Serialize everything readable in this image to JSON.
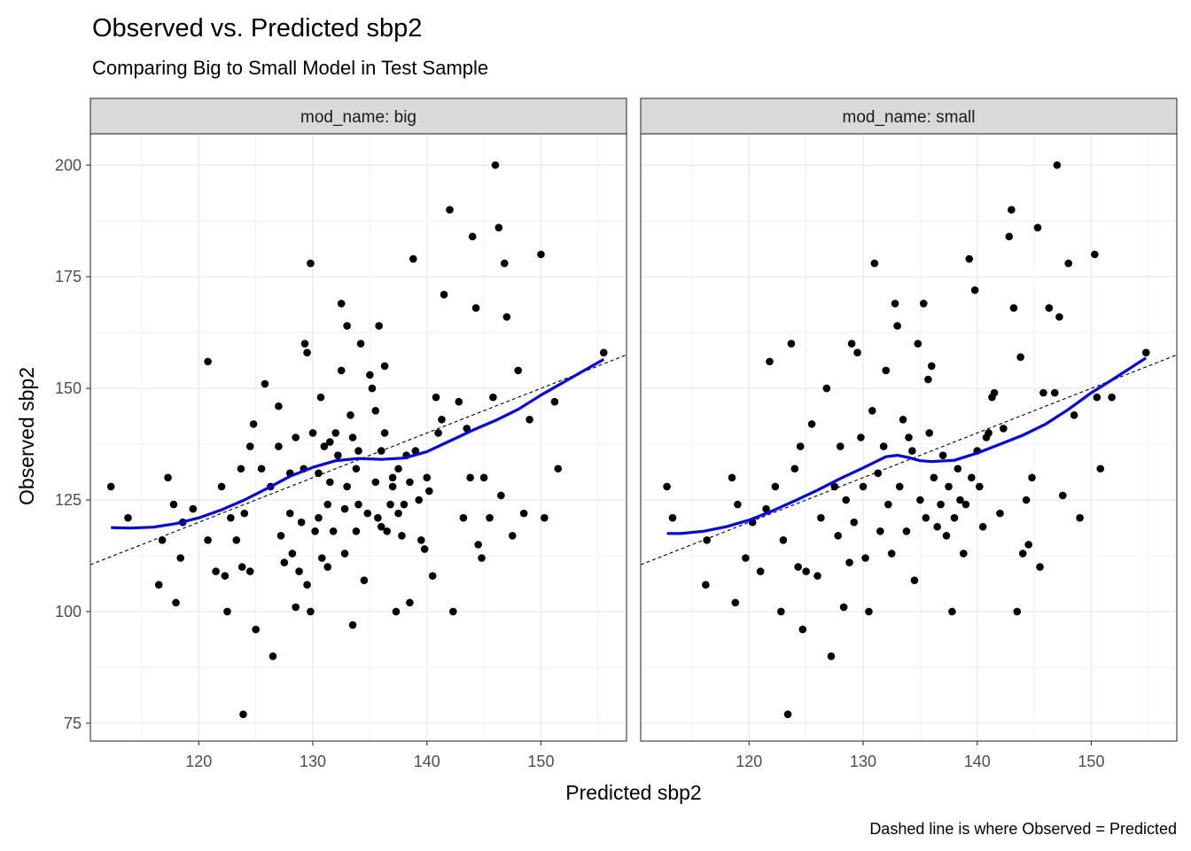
{
  "chart_data": {
    "type": "scatter",
    "title": "Observed vs. Predicted sbp2",
    "subtitle": "Comparing Big to Small Model in Test Sample",
    "xlabel": "Predicted sbp2",
    "ylabel": "Observed sbp2",
    "caption": "Dashed line is where Observed = Predicted",
    "xlim": [
      110.5,
      157.5
    ],
    "ylim": [
      71,
      207
    ],
    "x_ticks": [
      120,
      130,
      140,
      150
    ],
    "y_ticks": [
      75,
      100,
      125,
      150,
      175,
      200
    ],
    "grid": true,
    "reference_line": {
      "style": "dashed",
      "slope": 1,
      "intercept": 0
    },
    "colors": {
      "points": "#000000",
      "smooth": "#0000ff",
      "strip": "#d9d9d9",
      "grid": "#ebebeb",
      "border": "#333333"
    },
    "panels": [
      {
        "strip_label": "mod_name: big",
        "points": [
          [
            112.3,
            128
          ],
          [
            113.8,
            121
          ],
          [
            116.5,
            106
          ],
          [
            116.8,
            116
          ],
          [
            117.3,
            130
          ],
          [
            117.8,
            124
          ],
          [
            118.0,
            102
          ],
          [
            118.4,
            112
          ],
          [
            118.6,
            120
          ],
          [
            119.5,
            123
          ],
          [
            120.8,
            156
          ],
          [
            120.8,
            116
          ],
          [
            121.5,
            109
          ],
          [
            122.0,
            128
          ],
          [
            122.3,
            108
          ],
          [
            122.5,
            100
          ],
          [
            122.8,
            121
          ],
          [
            123.3,
            116
          ],
          [
            123.7,
            132
          ],
          [
            123.8,
            110
          ],
          [
            123.9,
            77
          ],
          [
            124.0,
            122
          ],
          [
            124.5,
            137
          ],
          [
            124.5,
            109
          ],
          [
            124.8,
            142
          ],
          [
            125.0,
            96
          ],
          [
            125.5,
            132
          ],
          [
            125.8,
            151
          ],
          [
            126.3,
            128
          ],
          [
            126.5,
            90
          ],
          [
            127.0,
            146
          ],
          [
            127.0,
            137
          ],
          [
            127.2,
            117
          ],
          [
            127.5,
            111
          ],
          [
            128.0,
            122
          ],
          [
            128.0,
            131
          ],
          [
            128.2,
            113
          ],
          [
            128.5,
            139
          ],
          [
            128.5,
            101
          ],
          [
            128.8,
            109
          ],
          [
            129.0,
            120
          ],
          [
            129.2,
            132
          ],
          [
            129.3,
            160
          ],
          [
            129.5,
            158
          ],
          [
            129.5,
            106
          ],
          [
            129.8,
            100
          ],
          [
            129.8,
            178
          ],
          [
            130.0,
            140
          ],
          [
            130.2,
            118
          ],
          [
            130.5,
            131
          ],
          [
            130.5,
            121
          ],
          [
            130.7,
            148
          ],
          [
            130.8,
            112
          ],
          [
            131.0,
            137
          ],
          [
            131.3,
            124
          ],
          [
            131.3,
            110
          ],
          [
            131.5,
            138
          ],
          [
            131.5,
            129
          ],
          [
            131.8,
            118
          ],
          [
            132.0,
            140
          ],
          [
            132.2,
            135
          ],
          [
            132.5,
            154
          ],
          [
            132.5,
            169
          ],
          [
            132.8,
            123
          ],
          [
            132.8,
            113
          ],
          [
            133.0,
            164
          ],
          [
            133.0,
            128
          ],
          [
            133.3,
            144
          ],
          [
            133.5,
            139
          ],
          [
            133.5,
            97
          ],
          [
            133.8,
            118
          ],
          [
            133.8,
            132
          ],
          [
            134.0,
            136
          ],
          [
            134.0,
            124
          ],
          [
            134.2,
            160
          ],
          [
            134.5,
            107
          ],
          [
            134.8,
            122
          ],
          [
            135.0,
            153
          ],
          [
            135.2,
            150
          ],
          [
            135.5,
            145
          ],
          [
            135.5,
            129
          ],
          [
            135.7,
            121
          ],
          [
            135.8,
            164
          ],
          [
            136.0,
            136
          ],
          [
            136.0,
            119
          ],
          [
            136.3,
            140
          ],
          [
            136.3,
            155
          ],
          [
            136.5,
            118
          ],
          [
            136.8,
            124
          ],
          [
            137.0,
            128
          ],
          [
            137.0,
            130
          ],
          [
            137.3,
            100
          ],
          [
            137.5,
            132
          ],
          [
            137.5,
            122
          ],
          [
            137.8,
            117
          ],
          [
            138.0,
            124
          ],
          [
            138.2,
            135
          ],
          [
            138.5,
            129
          ],
          [
            138.5,
            102
          ],
          [
            138.8,
            179
          ],
          [
            139.0,
            136
          ],
          [
            139.3,
            125
          ],
          [
            139.5,
            116
          ],
          [
            139.8,
            114
          ],
          [
            140.0,
            130
          ],
          [
            140.2,
            127
          ],
          [
            140.5,
            108
          ],
          [
            140.8,
            148
          ],
          [
            141.0,
            140
          ],
          [
            141.3,
            143
          ],
          [
            141.5,
            171
          ],
          [
            142.0,
            190
          ],
          [
            142.3,
            100
          ],
          [
            142.8,
            147
          ],
          [
            143.2,
            121
          ],
          [
            143.5,
            141
          ],
          [
            143.8,
            130
          ],
          [
            144.0,
            184
          ],
          [
            144.3,
            168
          ],
          [
            144.5,
            115
          ],
          [
            144.8,
            112
          ],
          [
            145.0,
            130
          ],
          [
            145.5,
            121
          ],
          [
            145.8,
            148
          ],
          [
            146.0,
            200
          ],
          [
            146.3,
            186
          ],
          [
            146.5,
            126
          ],
          [
            146.8,
            178
          ],
          [
            147.0,
            166
          ],
          [
            147.5,
            117
          ],
          [
            148.0,
            154
          ],
          [
            148.5,
            122
          ],
          [
            149.0,
            143
          ],
          [
            150.0,
            180
          ],
          [
            150.3,
            121
          ],
          [
            151.2,
            147
          ],
          [
            151.5,
            132
          ],
          [
            155.5,
            158
          ]
        ],
        "smooth": [
          [
            112.3,
            118.8
          ],
          [
            114,
            118.7
          ],
          [
            116,
            118.9
          ],
          [
            118,
            119.7
          ],
          [
            120,
            121
          ],
          [
            122,
            122.8
          ],
          [
            124,
            125
          ],
          [
            126,
            127.6
          ],
          [
            128,
            130.3
          ],
          [
            130,
            132.3
          ],
          [
            132,
            133.8
          ],
          [
            134,
            134.3
          ],
          [
            136,
            134.1
          ],
          [
            138,
            134.4
          ],
          [
            140,
            135.8
          ],
          [
            142,
            138.2
          ],
          [
            144,
            140.6
          ],
          [
            146,
            142.8
          ],
          [
            148,
            145.3
          ],
          [
            150,
            148.5
          ],
          [
            152,
            151.4
          ],
          [
            154,
            154.3
          ],
          [
            155.5,
            156.5
          ]
        ]
      },
      {
        "strip_label": "mod_name: small",
        "points": [
          [
            112.8,
            128
          ],
          [
            113.3,
            121
          ],
          [
            116.2,
            106
          ],
          [
            116.3,
            116
          ],
          [
            118.5,
            130
          ],
          [
            118.8,
            102
          ],
          [
            119.0,
            124
          ],
          [
            119.7,
            112
          ],
          [
            120.3,
            120
          ],
          [
            121.0,
            109
          ],
          [
            121.5,
            123
          ],
          [
            121.8,
            156
          ],
          [
            122.3,
            128
          ],
          [
            122.8,
            100
          ],
          [
            123.0,
            116
          ],
          [
            123.4,
            77
          ],
          [
            123.7,
            160
          ],
          [
            124.0,
            132
          ],
          [
            124.3,
            110
          ],
          [
            124.5,
            137
          ],
          [
            124.7,
            96
          ],
          [
            125.0,
            109
          ],
          [
            125.5,
            142
          ],
          [
            126.0,
            108
          ],
          [
            126.3,
            121
          ],
          [
            126.8,
            150
          ],
          [
            127.2,
            90
          ],
          [
            127.5,
            128
          ],
          [
            127.8,
            117
          ],
          [
            128.0,
            137
          ],
          [
            128.3,
            101
          ],
          [
            128.5,
            125
          ],
          [
            128.8,
            111
          ],
          [
            129.0,
            160
          ],
          [
            129.2,
            120
          ],
          [
            129.5,
            158
          ],
          [
            129.8,
            139
          ],
          [
            130.0,
            128
          ],
          [
            130.2,
            112
          ],
          [
            130.5,
            100
          ],
          [
            130.8,
            145
          ],
          [
            131.0,
            178
          ],
          [
            131.3,
            131
          ],
          [
            131.5,
            118
          ],
          [
            131.8,
            137
          ],
          [
            132.0,
            154
          ],
          [
            132.2,
            124
          ],
          [
            132.5,
            113
          ],
          [
            132.8,
            169
          ],
          [
            133.0,
            164
          ],
          [
            133.2,
            128
          ],
          [
            133.5,
            143
          ],
          [
            133.8,
            118
          ],
          [
            134.0,
            139
          ],
          [
            134.3,
            136
          ],
          [
            134.5,
            107
          ],
          [
            134.8,
            160
          ],
          [
            135.0,
            125
          ],
          [
            135.3,
            169
          ],
          [
            135.5,
            121
          ],
          [
            135.7,
            152
          ],
          [
            135.8,
            140
          ],
          [
            136.0,
            155
          ],
          [
            136.2,
            130
          ],
          [
            136.5,
            119
          ],
          [
            136.8,
            124
          ],
          [
            137.0,
            135
          ],
          [
            137.3,
            117
          ],
          [
            137.5,
            128
          ],
          [
            137.8,
            100
          ],
          [
            138.0,
            121
          ],
          [
            138.3,
            132
          ],
          [
            138.5,
            125
          ],
          [
            138.8,
            113
          ],
          [
            139.0,
            124
          ],
          [
            139.3,
            179
          ],
          [
            139.5,
            130
          ],
          [
            139.8,
            172
          ],
          [
            140.0,
            136
          ],
          [
            140.2,
            128
          ],
          [
            140.5,
            119
          ],
          [
            140.8,
            139
          ],
          [
            141.0,
            140
          ],
          [
            141.3,
            148
          ],
          [
            141.5,
            149
          ],
          [
            142.0,
            122
          ],
          [
            142.3,
            141
          ],
          [
            142.8,
            184
          ],
          [
            143.0,
            190
          ],
          [
            143.2,
            168
          ],
          [
            143.5,
            100
          ],
          [
            143.8,
            157
          ],
          [
            144.0,
            113
          ],
          [
            144.3,
            125
          ],
          [
            144.5,
            115
          ],
          [
            144.8,
            130
          ],
          [
            145.3,
            186
          ],
          [
            145.5,
            110
          ],
          [
            145.8,
            149
          ],
          [
            146.3,
            168
          ],
          [
            146.8,
            149
          ],
          [
            147.0,
            200
          ],
          [
            147.2,
            166
          ],
          [
            147.5,
            126
          ],
          [
            148.0,
            178
          ],
          [
            148.5,
            144
          ],
          [
            149.0,
            121
          ],
          [
            150.3,
            180
          ],
          [
            150.5,
            148
          ],
          [
            150.8,
            132
          ],
          [
            151.8,
            148
          ],
          [
            154.8,
            158
          ]
        ],
        "smooth": [
          [
            112.8,
            117.5
          ],
          [
            114,
            117.5
          ],
          [
            116,
            118
          ],
          [
            118,
            119
          ],
          [
            120,
            120.5
          ],
          [
            122,
            122.5
          ],
          [
            124,
            124.8
          ],
          [
            126,
            127.2
          ],
          [
            128,
            129.8
          ],
          [
            130,
            132.2
          ],
          [
            132,
            134.7
          ],
          [
            133,
            135
          ],
          [
            134,
            134.5
          ],
          [
            135,
            133.8
          ],
          [
            136,
            133.6
          ],
          [
            138,
            133.9
          ],
          [
            140,
            135.5
          ],
          [
            142,
            137.5
          ],
          [
            144,
            139.5
          ],
          [
            146,
            142
          ],
          [
            148,
            145.3
          ],
          [
            150,
            149
          ],
          [
            152,
            152.2
          ],
          [
            154,
            155.5
          ],
          [
            154.8,
            156.8
          ]
        ]
      }
    ]
  }
}
